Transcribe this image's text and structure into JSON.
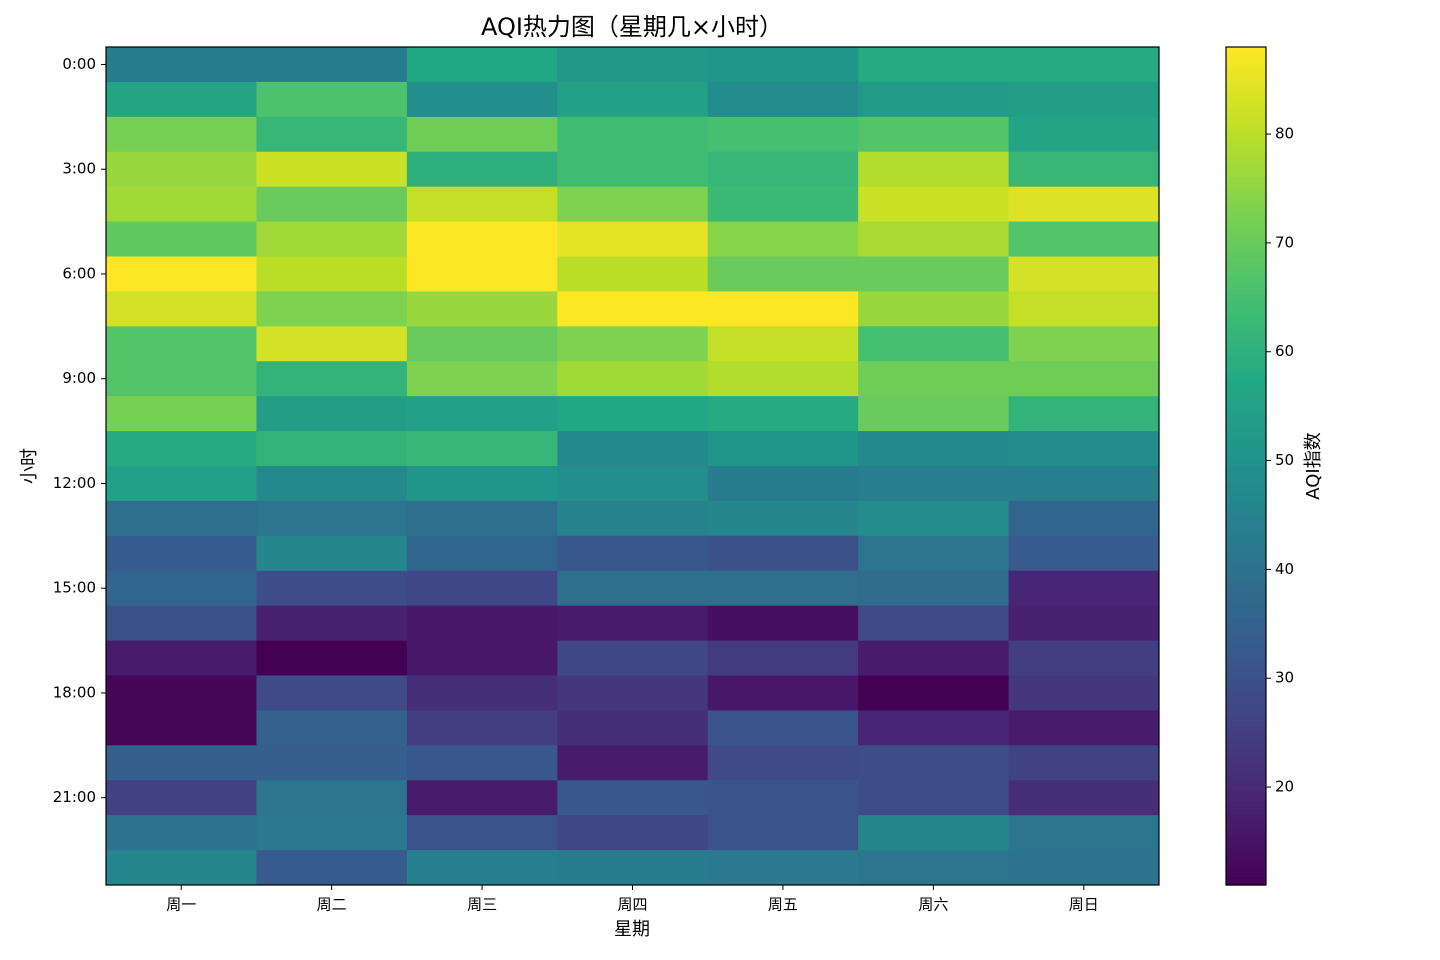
{
  "chart_data": {
    "type": "heatmap",
    "title": "AQI热力图（星期几×小时）",
    "xlabel": "星期",
    "ylabel": "小时",
    "categories": [
      "周一",
      "周二",
      "周三",
      "周四",
      "周五",
      "周六",
      "周日"
    ],
    "rows": [
      "0:00",
      null,
      null,
      "3:00",
      null,
      null,
      "6:00",
      null,
      null,
      "9:00",
      null,
      null,
      "12:00",
      null,
      null,
      "15:00",
      null,
      null,
      "18:00",
      null,
      null,
      "21:00",
      null,
      null
    ],
    "values": [
      [
        43,
        43,
        57,
        52,
        51,
        58,
        58
      ],
      [
        56,
        66,
        49,
        55,
        48,
        53,
        54
      ],
      [
        72,
        62,
        71,
        64,
        65,
        67,
        56
      ],
      [
        76,
        82,
        60,
        64,
        62,
        79,
        62
      ],
      [
        77,
        70,
        81,
        73,
        63,
        82,
        84
      ],
      [
        69,
        77,
        88,
        85,
        74,
        78,
        67
      ],
      [
        88,
        80,
        88,
        80,
        70,
        70,
        83
      ],
      [
        83,
        73,
        76,
        88,
        88,
        76,
        81
      ],
      [
        67,
        83,
        70,
        73,
        81,
        65,
        73
      ],
      [
        67,
        61,
        73,
        77,
        79,
        71,
        71
      ],
      [
        72,
        54,
        55,
        57,
        58,
        70,
        61
      ],
      [
        58,
        61,
        62,
        47,
        51,
        47,
        48
      ],
      [
        55,
        47,
        51,
        49,
        43,
        44,
        44
      ],
      [
        39,
        41,
        39,
        45,
        46,
        48,
        36
      ],
      [
        33,
        46,
        36,
        32,
        30,
        41,
        33
      ],
      [
        36,
        29,
        27,
        39,
        39,
        38,
        19
      ],
      [
        30,
        18,
        16,
        17,
        14,
        28,
        18
      ],
      [
        17,
        11,
        16,
        27,
        24,
        17,
        25
      ],
      [
        12,
        28,
        21,
        23,
        16,
        11,
        23
      ],
      [
        12,
        35,
        25,
        21,
        31,
        19,
        17
      ],
      [
        34,
        34,
        32,
        17,
        28,
        29,
        26
      ],
      [
        26,
        41,
        17,
        32,
        31,
        29,
        21
      ],
      [
        40,
        42,
        31,
        27,
        31,
        46,
        41
      ],
      [
        46,
        33,
        44,
        43,
        42,
        41,
        40
      ]
    ],
    "colormap": "viridis",
    "colorbar": {
      "label": "AQI指数",
      "lim": [
        11,
        88
      ],
      "ticks": [
        20,
        30,
        40,
        50,
        60,
        70,
        80
      ]
    }
  }
}
